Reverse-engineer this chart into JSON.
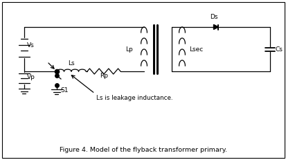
{
  "title": "Figure 4. Model of the flyback transformer primary.",
  "line_color": "#000000",
  "fig_width": 4.14,
  "fig_height": 2.31,
  "dpi": 100,
  "labels": {
    "vs": "Vs",
    "vp": "Vp",
    "ls": "Ls",
    "rp": "Rp",
    "lp": "Lp",
    "s1": "S1",
    "ds": "Ds",
    "lsec": "Lsec",
    "cs": "Cs",
    "leakage": "Ls is leakage inductance."
  }
}
